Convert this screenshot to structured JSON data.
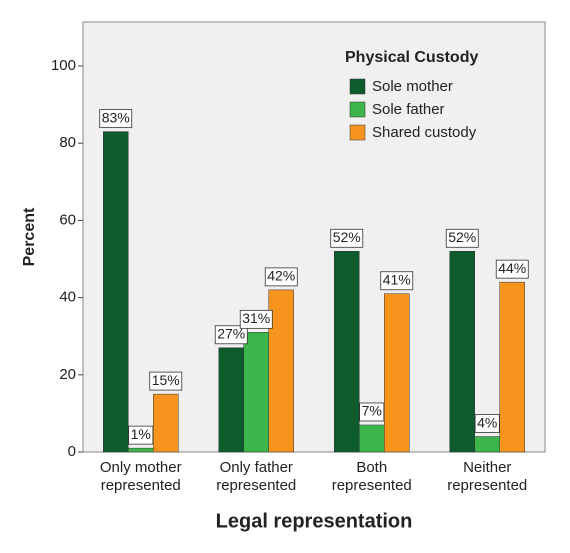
{
  "chart_data": {
    "type": "bar",
    "x_label": "Legal representation",
    "y_label": "Percent",
    "categories": [
      [
        "Only mother",
        "represented"
      ],
      [
        "Only father",
        "represented"
      ],
      [
        "Both",
        "represented"
      ],
      [
        "Neither",
        "represented"
      ]
    ],
    "series": [
      {
        "name": "Sole mother",
        "color": "#0e5b2d",
        "values": [
          83,
          27,
          52,
          52
        ],
        "value_labels": [
          "83%",
          "27%",
          "52%",
          "52%"
        ]
      },
      {
        "name": "Sole father",
        "color": "#3cb54a",
        "values": [
          1,
          31,
          7,
          4
        ],
        "value_labels": [
          "1%",
          "31%",
          "7%",
          "4%"
        ]
      },
      {
        "name": "Shared custody",
        "color": "#f7941d",
        "values": [
          15,
          42,
          41,
          44
        ],
        "value_labels": [
          "15%",
          "42%",
          "41%",
          "44%"
        ]
      }
    ],
    "legend_title": "Physical Custody",
    "legend_position": "upper right",
    "ylim": [
      0,
      111.4
    ],
    "yticks": [
      0,
      20,
      40,
      60,
      80,
      100
    ]
  }
}
